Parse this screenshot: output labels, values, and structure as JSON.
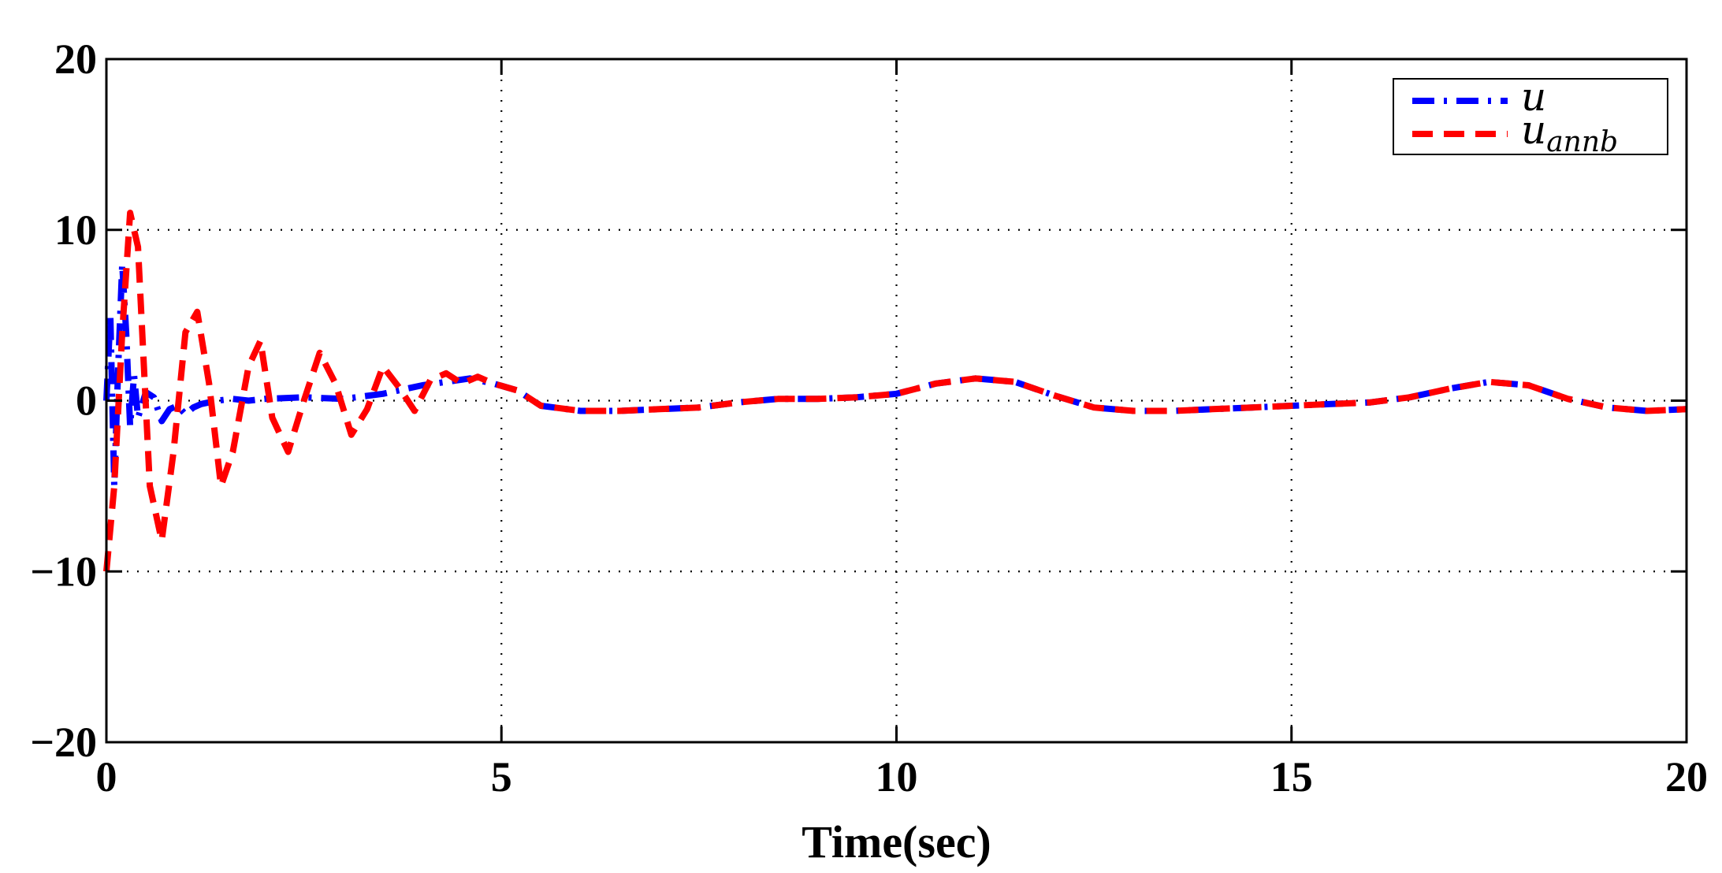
{
  "chart_data": {
    "type": "line",
    "title": "",
    "xlabel": "Time(sec)",
    "ylabel": "",
    "xlim": [
      0,
      20
    ],
    "ylim": [
      -20,
      20
    ],
    "xticks": [
      0,
      5,
      10,
      15,
      20
    ],
    "yticks": [
      -20,
      -10,
      0,
      10,
      20
    ],
    "xtick_labels": [
      "0",
      "5",
      "10",
      "15",
      "20"
    ],
    "ytick_labels": [
      "−20",
      "−10",
      "0",
      "10",
      "20"
    ],
    "grid": true,
    "legend_position": "top-right",
    "series": [
      {
        "name": "u",
        "name_base": "u",
        "name_sub": "",
        "color": "#0000ff",
        "style": "dash-dot",
        "x": [
          0,
          0.05,
          0.1,
          0.15,
          0.2,
          0.25,
          0.3,
          0.35,
          0.4,
          0.5,
          0.6,
          0.7,
          0.8,
          0.9,
          1.0,
          1.1,
          1.2,
          1.4,
          1.6,
          1.8,
          2.0,
          2.5,
          3.0,
          3.5,
          4.0,
          4.3,
          4.6,
          4.9,
          5.2,
          5.5,
          6.0,
          6.5,
          7.0,
          7.5,
          8.0,
          8.5,
          9.0,
          9.5,
          10.0,
          10.5,
          11.0,
          11.5,
          12.0,
          12.5,
          13.0,
          13.5,
          14.0,
          14.5,
          15.0,
          15.5,
          16.0,
          16.5,
          17.0,
          17.5,
          18.0,
          18.5,
          19.0,
          19.5,
          20.0
        ],
        "y": [
          0,
          5,
          -5,
          2,
          8,
          4,
          -1.5,
          1.5,
          -1,
          0.5,
          0.2,
          -1.2,
          -0.5,
          -0.3,
          -0.8,
          -0.4,
          -0.2,
          0,
          0.1,
          0,
          0.1,
          0.2,
          0.1,
          0.4,
          0.9,
          1.1,
          1.3,
          1.0,
          0.6,
          -0.3,
          -0.6,
          -0.6,
          -0.5,
          -0.4,
          -0.1,
          0.1,
          0.1,
          0.2,
          0.4,
          1.0,
          1.3,
          1.1,
          0.3,
          -0.4,
          -0.6,
          -0.6,
          -0.5,
          -0.4,
          -0.3,
          -0.2,
          -0.1,
          0.2,
          0.7,
          1.1,
          0.9,
          0.1,
          -0.4,
          -0.6,
          -0.5
        ]
      },
      {
        "name": "u_annb",
        "name_base": "u",
        "name_sub": "annb",
        "color": "#ff0000",
        "style": "dashed",
        "x": [
          0,
          0.1,
          0.2,
          0.3,
          0.4,
          0.55,
          0.7,
          0.85,
          1.0,
          1.15,
          1.3,
          1.45,
          1.6,
          1.8,
          1.95,
          2.1,
          2.3,
          2.5,
          2.7,
          2.9,
          3.1,
          3.3,
          3.5,
          3.7,
          3.9,
          4.1,
          4.3,
          4.5,
          4.7,
          4.9,
          5.2,
          5.5,
          6.0,
          6.5,
          7.0,
          7.5,
          8.0,
          8.5,
          9.0,
          9.5,
          10.0,
          10.5,
          11.0,
          11.5,
          12.0,
          12.5,
          13.0,
          13.5,
          14.0,
          14.5,
          15.0,
          15.5,
          16.0,
          16.5,
          17.0,
          17.5,
          18.0,
          18.5,
          19.0,
          19.5,
          20.0
        ],
        "y": [
          -10,
          -5,
          4,
          11,
          9,
          -5,
          -8.2,
          -3,
          4,
          5.2,
          1,
          -5,
          -3,
          2,
          3.5,
          -1,
          -3,
          0,
          2.8,
          1,
          -2,
          -0.5,
          2,
          0.8,
          -0.6,
          1.2,
          1.6,
          1.0,
          1.4,
          1.0,
          0.6,
          -0.3,
          -0.6,
          -0.6,
          -0.5,
          -0.4,
          -0.1,
          0.1,
          0.1,
          0.2,
          0.4,
          1.0,
          1.3,
          1.1,
          0.3,
          -0.4,
          -0.6,
          -0.6,
          -0.5,
          -0.4,
          -0.3,
          -0.2,
          -0.1,
          0.2,
          0.7,
          1.1,
          0.9,
          0.1,
          -0.4,
          -0.6,
          -0.5
        ]
      }
    ]
  }
}
